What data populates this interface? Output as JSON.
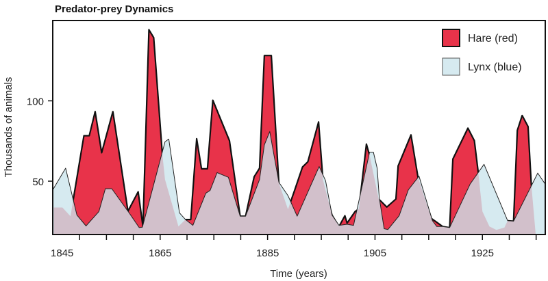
{
  "chart_data": {
    "type": "area",
    "title": "Predator-prey Dynamics",
    "xlabel": "Time (years)",
    "ylabel": "Thousands of animals",
    "xlim": [
      1845,
      1936.7
    ],
    "ylim": [
      16.8,
      150
    ],
    "x_tick_labels": [
      1845,
      1865,
      1885,
      1905,
      1925
    ],
    "x_minor_tick_step": 5,
    "y_tick_labels": [
      50,
      100
    ],
    "grid": false,
    "legend_placement": "top-right",
    "series": [
      {
        "name": "Hare (red)",
        "color": "#e8334a",
        "points": [
          [
            1845.2,
            33.6
          ],
          [
            1846.8,
            33.6
          ],
          [
            1848.3,
            28.2
          ],
          [
            1850.8,
            78.3
          ],
          [
            1851.8,
            78.3
          ],
          [
            1852.9,
            93.3
          ],
          [
            1854.1,
            67.7
          ],
          [
            1856.2,
            93.3
          ],
          [
            1859.0,
            31.3
          ],
          [
            1860.9,
            43.4
          ],
          [
            1861.8,
            21.8
          ],
          [
            1862.9,
            144.3
          ],
          [
            1863.8,
            139.3
          ],
          [
            1865.4,
            66.7
          ],
          [
            1865.9,
            51
          ],
          [
            1868.4,
            21.8
          ],
          [
            1869.7,
            26.1
          ],
          [
            1870.7,
            26.1
          ],
          [
            1871.8,
            76.4
          ],
          [
            1872.7,
            57.7
          ],
          [
            1873.8,
            57.7
          ],
          [
            1874.8,
            100.4
          ],
          [
            1877.9,
            75.2
          ],
          [
            1879.9,
            28.2
          ],
          [
            1880.9,
            28.2
          ],
          [
            1882.5,
            52.7
          ],
          [
            1883.5,
            58.1
          ],
          [
            1884.4,
            128.2
          ],
          [
            1885.7,
            128.2
          ],
          [
            1887.1,
            48.9
          ],
          [
            1888.8,
            32.5
          ],
          [
            1890.0,
            43.9
          ],
          [
            1891.5,
            58.8
          ],
          [
            1892.5,
            62.1
          ],
          [
            1894.5,
            86.9
          ],
          [
            1895.3,
            51
          ],
          [
            1897.0,
            28.9
          ],
          [
            1898.3,
            21.8
          ],
          [
            1899.4,
            28.5
          ],
          [
            1899.8,
            23.9
          ],
          [
            1901.3,
            31.1
          ],
          [
            1902.0,
            32.8
          ],
          [
            1903.4,
            73.1
          ],
          [
            1904.0,
            66
          ],
          [
            1905.7,
            38.9
          ],
          [
            1907.2,
            33.9
          ],
          [
            1908.9,
            38.9
          ],
          [
            1909.3,
            59.5
          ],
          [
            1911.7,
            78.8
          ],
          [
            1913.0,
            52.4
          ],
          [
            1915.5,
            26.8
          ],
          [
            1917.6,
            21.8
          ],
          [
            1918.9,
            21.1
          ],
          [
            1919.5,
            63.8
          ],
          [
            1922.3,
            83
          ],
          [
            1923.5,
            75.2
          ],
          [
            1924.2,
            56
          ],
          [
            1925.0,
            31.1
          ],
          [
            1926.3,
            21.8
          ],
          [
            1927.6,
            19.7
          ],
          [
            1929.1,
            21.1
          ],
          [
            1929.7,
            25.4
          ],
          [
            1930.8,
            25.1
          ],
          [
            1931.5,
            81.6
          ],
          [
            1932.4,
            90.9
          ],
          [
            1933.5,
            84
          ],
          [
            1934.1,
            48.1
          ],
          [
            1934.9,
            17.5
          ]
        ]
      },
      {
        "name": "Lynx (blue)",
        "color": "#d6eaf0",
        "points": [
          [
            1845.0,
            44.6
          ],
          [
            1847.4,
            58.1
          ],
          [
            1849.5,
            28.9
          ],
          [
            1851.2,
            22.1
          ],
          [
            1853.6,
            31.1
          ],
          [
            1854.8,
            45.3
          ],
          [
            1856.0,
            45.3
          ],
          [
            1859.0,
            31.3
          ],
          [
            1861.1,
            21.1
          ],
          [
            1861.7,
            21.4
          ],
          [
            1865.9,
            74.5
          ],
          [
            1866.6,
            76.2
          ],
          [
            1868.6,
            30.3
          ],
          [
            1869.7,
            26.1
          ],
          [
            1871.1,
            22.5
          ],
          [
            1873.5,
            42.5
          ],
          [
            1874.3,
            44.2
          ],
          [
            1875.6,
            55.3
          ],
          [
            1877.7,
            52.4
          ],
          [
            1879.9,
            28.2
          ],
          [
            1880.9,
            28.2
          ],
          [
            1883.5,
            51
          ],
          [
            1884.4,
            72.6
          ],
          [
            1885.4,
            80.9
          ],
          [
            1887.1,
            49.3
          ],
          [
            1888.8,
            41
          ],
          [
            1890.5,
            28.2
          ],
          [
            1894.6,
            59.1
          ],
          [
            1895.8,
            50.3
          ],
          [
            1897.0,
            28.9
          ],
          [
            1898.3,
            22.5
          ],
          [
            1899.8,
            23.2
          ],
          [
            1901.0,
            22.5
          ],
          [
            1904.0,
            68.1
          ],
          [
            1904.7,
            68.1
          ],
          [
            1905.4,
            58.1
          ],
          [
            1905.8,
            39.6
          ],
          [
            1906.7,
            20.4
          ],
          [
            1907.4,
            19.9
          ],
          [
            1909.5,
            28.5
          ],
          [
            1911.2,
            44.6
          ],
          [
            1913.2,
            53.1
          ],
          [
            1915.7,
            25.4
          ],
          [
            1916.5,
            21.8
          ],
          [
            1917.6,
            21.8
          ],
          [
            1918.9,
            21.1
          ],
          [
            1922.7,
            48.1
          ],
          [
            1925.3,
            60.5
          ],
          [
            1929.7,
            25.4
          ],
          [
            1930.8,
            25.1
          ],
          [
            1935.3,
            55
          ],
          [
            1936.7,
            48.1
          ]
        ]
      }
    ],
    "overlap_color": "#d2c0cb"
  }
}
